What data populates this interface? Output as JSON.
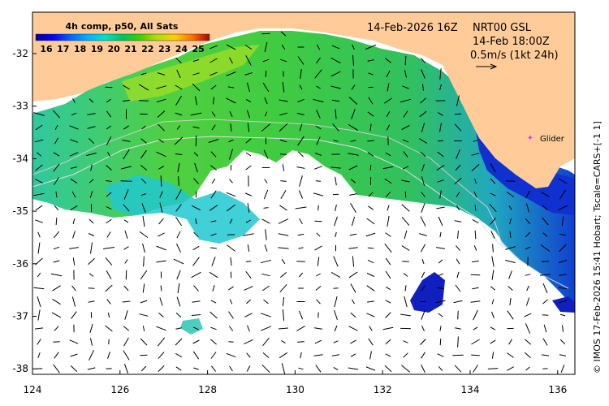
{
  "map": {
    "title_line1": "14-Feb-2026 16Z",
    "region": "NRT00 GSL",
    "obs_time": "14-Feb 18:00Z",
    "scale_label": "0.5m/s (1kt 24h)",
    "glider_label": "Glider",
    "glider_color": "#e040e0",
    "credit": "© IMOS 17-Feb-2026 15:41 Hobart; Tscale=CARS+[-1 1]",
    "land_color": "#ffcc99",
    "x_ticks": [
      "124",
      "126",
      "128",
      "130",
      "132",
      "134",
      "136"
    ],
    "y_ticks": [
      "-32",
      "-33",
      "-34",
      "-35",
      "-36",
      "-37",
      "-38"
    ]
  },
  "colorbar": {
    "title": "4h comp, p50, All Sats",
    "labels": [
      "16",
      "17",
      "18",
      "19",
      "20",
      "21",
      "22",
      "23",
      "24",
      "25"
    ],
    "colors": [
      "#00008b",
      "#0000ff",
      "#0055ff",
      "#00aaff",
      "#00e0e0",
      "#00c060",
      "#40d000",
      "#a0e000",
      "#ffe000",
      "#ff9000",
      "#e03000",
      "#a00000"
    ]
  }
}
